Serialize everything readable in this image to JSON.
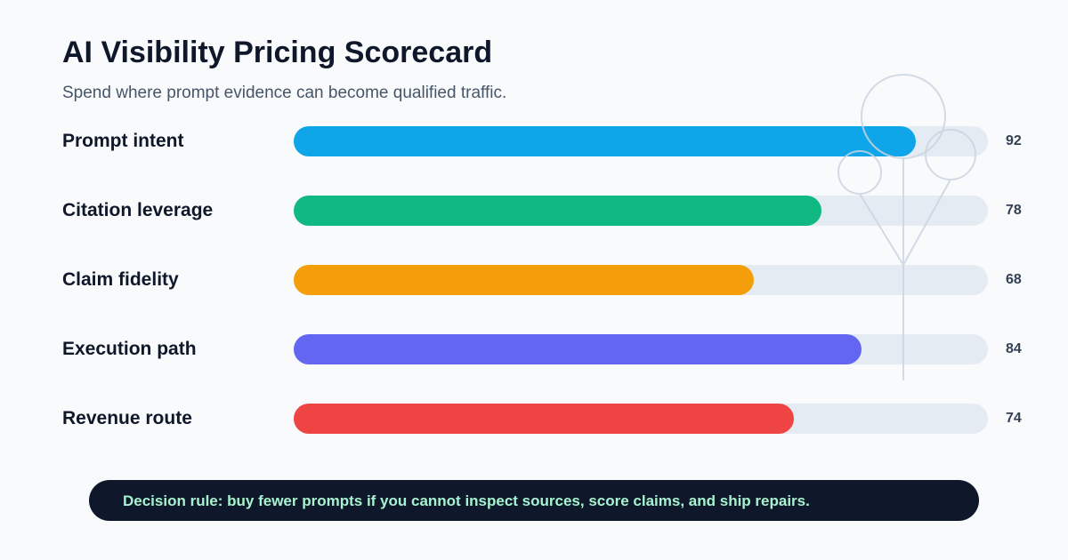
{
  "chart_data": {
    "type": "bar",
    "orientation": "horizontal",
    "title": "AI Visibility Pricing Scorecard",
    "subtitle": "Spend where prompt evidence can become qualified traffic.",
    "xlim": [
      0,
      100
    ],
    "grid": false,
    "categories": [
      "Prompt intent",
      "Citation leverage",
      "Claim fidelity",
      "Execution path",
      "Revenue route"
    ],
    "values": [
      92,
      78,
      68,
      84,
      74
    ],
    "value_labels": [
      "92",
      "78",
      "68",
      "84",
      "74"
    ],
    "colors": [
      "#0ea5e9",
      "#10b981",
      "#f59e0b",
      "#6366f1",
      "#ef4444"
    ],
    "track_color": "#e2e8f0"
  },
  "decision_rule": "Decision rule: buy fewer prompts if you cannot inspect sources, score claims, and ship repairs."
}
